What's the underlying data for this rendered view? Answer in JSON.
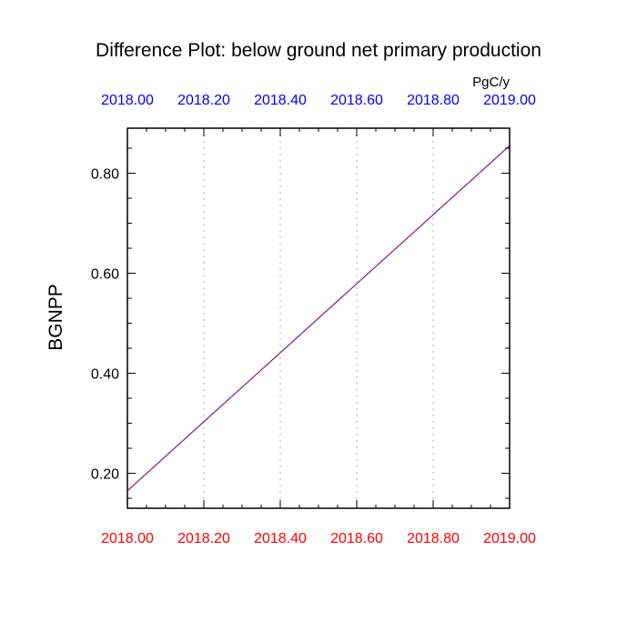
{
  "chart_data": {
    "type": "line",
    "title": "Difference Plot: below ground net primary production",
    "units": "PgC/y",
    "ylabel": "BGNPP",
    "xlabel": "",
    "x_range": [
      2018.0,
      2019.0
    ],
    "ylim": [
      0.13,
      0.89
    ],
    "x_ticks_top": [
      "2018.00",
      "2018.20",
      "2018.40",
      "2018.60",
      "2018.80",
      "2019.00"
    ],
    "x_ticks_bottom": [
      "2018.00",
      "2018.20",
      "2018.40",
      "2018.60",
      "2018.80",
      "2019.00"
    ],
    "y_ticks": [
      "0.20",
      "0.40",
      "0.60",
      "0.80"
    ],
    "grid": "vertical dotted at major x ticks",
    "series": [
      {
        "x": [
          2018.0,
          2019.0
        ],
        "values": [
          0.165,
          0.855
        ],
        "color": "#0000ff",
        "style": "solid"
      },
      {
        "x": [
          2018.0,
          2019.0
        ],
        "values": [
          0.165,
          0.855
        ],
        "color": "#ff0000",
        "style": "dashed"
      }
    ],
    "colors": {
      "top_axis_labels": "#0000ff",
      "bottom_axis_labels": "#ff0000",
      "grid": "#c8c8c8",
      "axes": "#000000"
    }
  }
}
